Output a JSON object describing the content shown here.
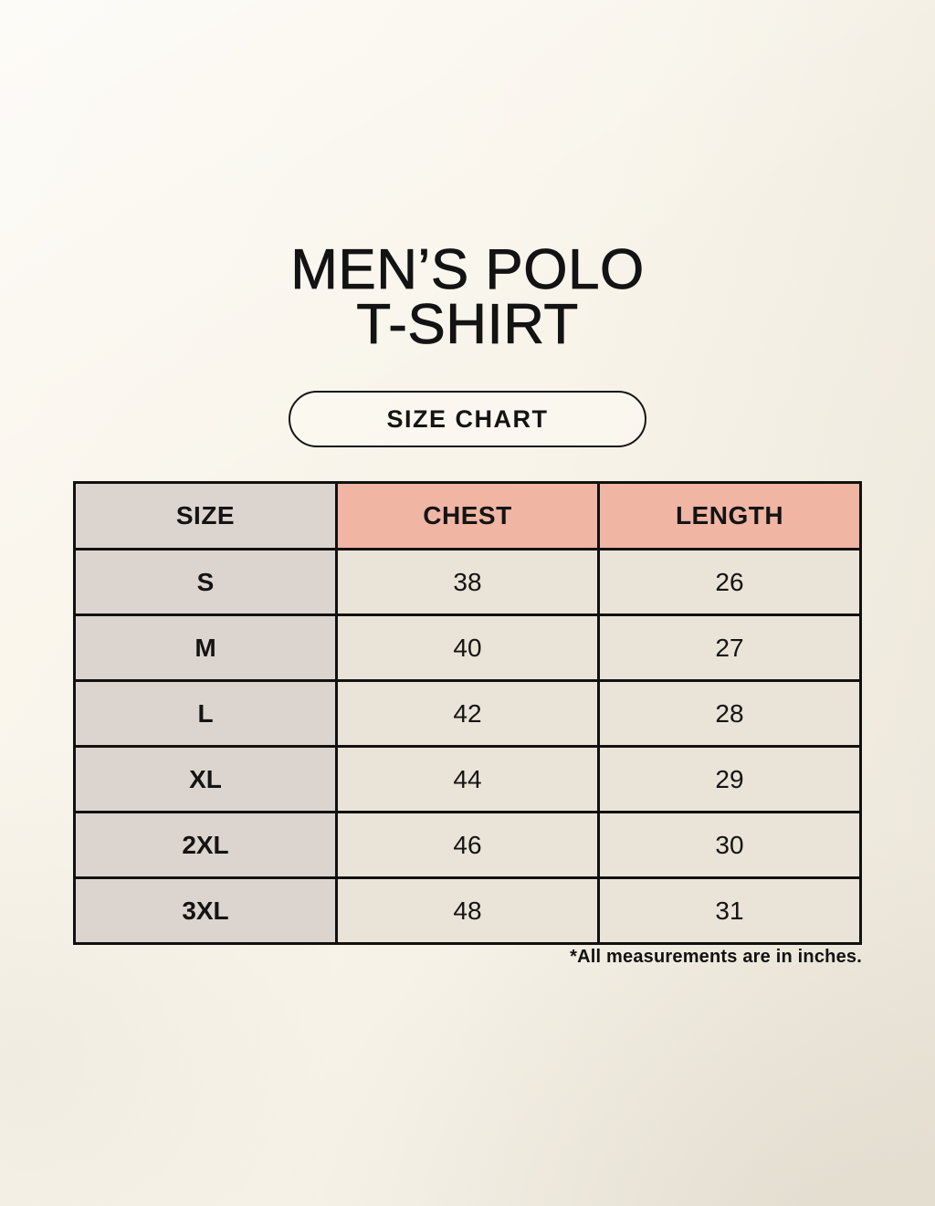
{
  "header": {
    "title_line1": "MEN’S POLO",
    "title_line2": "T-SHIRT",
    "badge_label": "SIZE CHART"
  },
  "footnote": "*All measurements are in inches.",
  "chart_data": {
    "type": "table",
    "title": "MEN’S POLO T-SHIRT",
    "subtitle": "SIZE CHART",
    "columns": [
      "SIZE",
      "CHEST",
      "LENGTH"
    ],
    "rows": [
      [
        "S",
        "38",
        "26"
      ],
      [
        "M",
        "40",
        "27"
      ],
      [
        "L",
        "42",
        "28"
      ],
      [
        "XL",
        "44",
        "29"
      ],
      [
        "2XL",
        "46",
        "30"
      ],
      [
        "3XL",
        "48",
        "31"
      ]
    ],
    "units": "inches",
    "note": "*All measurements are in inches."
  },
  "colors": {
    "background": "#f8f4ea",
    "header_accent_pink": "#f0b5a3",
    "size_column_gray": "#dcd5cf",
    "cell_cream": "#eae3d7",
    "table_border": "#111111",
    "text": "#141414"
  }
}
